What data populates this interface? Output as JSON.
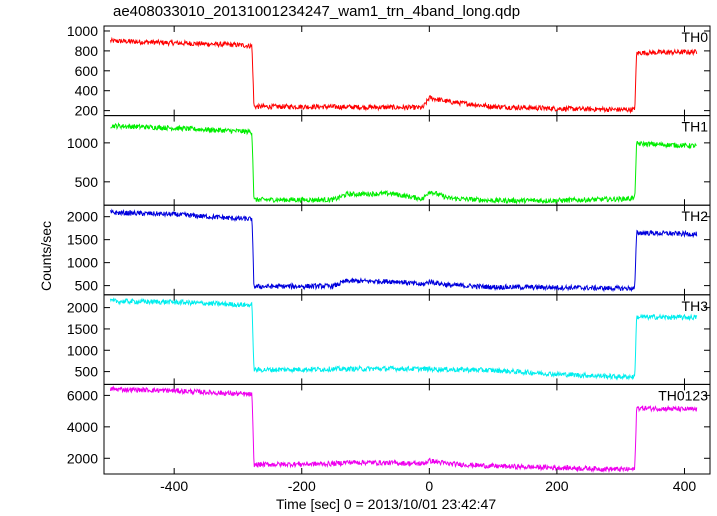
{
  "chart_data": {
    "type": "line",
    "title": "ae408033010_20131001234247_wam1_trn_4band_long.qdp",
    "xlabel": "Time [sec] 0 = 2013/10/01 23:42:47",
    "ylabel": "Counts/sec",
    "xlim": [
      -510,
      440
    ],
    "xticks": [
      -400,
      -200,
      0,
      200,
      400
    ],
    "grid": false,
    "panels": [
      {
        "name": "TH0",
        "color": "#ff0000",
        "ylim": [
          150,
          1050
        ],
        "yticks": [
          200,
          400,
          600,
          800,
          1000
        ],
        "points": [
          [
            -500,
            900
          ],
          [
            -400,
            880
          ],
          [
            -300,
            860
          ],
          [
            -278,
            850
          ],
          [
            -275,
            240
          ],
          [
            -200,
            240
          ],
          [
            -100,
            235
          ],
          [
            -10,
            230
          ],
          [
            0,
            330
          ],
          [
            30,
            290
          ],
          [
            100,
            240
          ],
          [
            200,
            220
          ],
          [
            300,
            210
          ],
          [
            322,
            210
          ],
          [
            325,
            780
          ],
          [
            420,
            790
          ]
        ]
      },
      {
        "name": "TH1",
        "color": "#00ee00",
        "ylim": [
          200,
          1350
        ],
        "yticks": [
          500,
          1000
        ],
        "points": [
          [
            -500,
            1220
          ],
          [
            -400,
            1190
          ],
          [
            -300,
            1150
          ],
          [
            -278,
            1140
          ],
          [
            -275,
            270
          ],
          [
            -150,
            270
          ],
          [
            -130,
            340
          ],
          [
            -60,
            350
          ],
          [
            -10,
            280
          ],
          [
            0,
            380
          ],
          [
            30,
            290
          ],
          [
            100,
            260
          ],
          [
            200,
            260
          ],
          [
            300,
            280
          ],
          [
            322,
            290
          ],
          [
            325,
            990
          ],
          [
            420,
            960
          ]
        ]
      },
      {
        "name": "TH2",
        "color": "#0000dd",
        "ylim": [
          300,
          2250
        ],
        "yticks": [
          500,
          1000,
          1500,
          2000
        ],
        "points": [
          [
            -500,
            2090
          ],
          [
            -400,
            2050
          ],
          [
            -300,
            1960
          ],
          [
            -278,
            1950
          ],
          [
            -275,
            480
          ],
          [
            -150,
            490
          ],
          [
            -130,
            600
          ],
          [
            -50,
            590
          ],
          [
            -10,
            520
          ],
          [
            0,
            590
          ],
          [
            30,
            510
          ],
          [
            100,
            470
          ],
          [
            200,
            460
          ],
          [
            300,
            440
          ],
          [
            322,
            440
          ],
          [
            325,
            1650
          ],
          [
            420,
            1620
          ]
        ]
      },
      {
        "name": "TH3",
        "color": "#00eeee",
        "ylim": [
          200,
          2300
        ],
        "yticks": [
          500,
          1000,
          1500,
          2000
        ],
        "points": [
          [
            -500,
            2150
          ],
          [
            -400,
            2130
          ],
          [
            -300,
            2070
          ],
          [
            -278,
            2060
          ],
          [
            -275,
            540
          ],
          [
            -150,
            560
          ],
          [
            -50,
            570
          ],
          [
            0,
            560
          ],
          [
            100,
            530
          ],
          [
            200,
            440
          ],
          [
            300,
            380
          ],
          [
            322,
            380
          ],
          [
            325,
            1780
          ],
          [
            420,
            1770
          ]
        ]
      },
      {
        "name": "TH0123",
        "color": "#ee00ee",
        "ylim": [
          1000,
          6700
        ],
        "yticks": [
          2000,
          4000,
          6000
        ],
        "points": [
          [
            -500,
            6400
          ],
          [
            -400,
            6300
          ],
          [
            -300,
            6100
          ],
          [
            -278,
            6050
          ],
          [
            -275,
            1600
          ],
          [
            -150,
            1650
          ],
          [
            -130,
            1750
          ],
          [
            -50,
            1700
          ],
          [
            -10,
            1650
          ],
          [
            0,
            1850
          ],
          [
            30,
            1650
          ],
          [
            100,
            1500
          ],
          [
            200,
            1400
          ],
          [
            300,
            1300
          ],
          [
            322,
            1300
          ],
          [
            325,
            5200
          ],
          [
            420,
            5100
          ]
        ]
      }
    ]
  }
}
